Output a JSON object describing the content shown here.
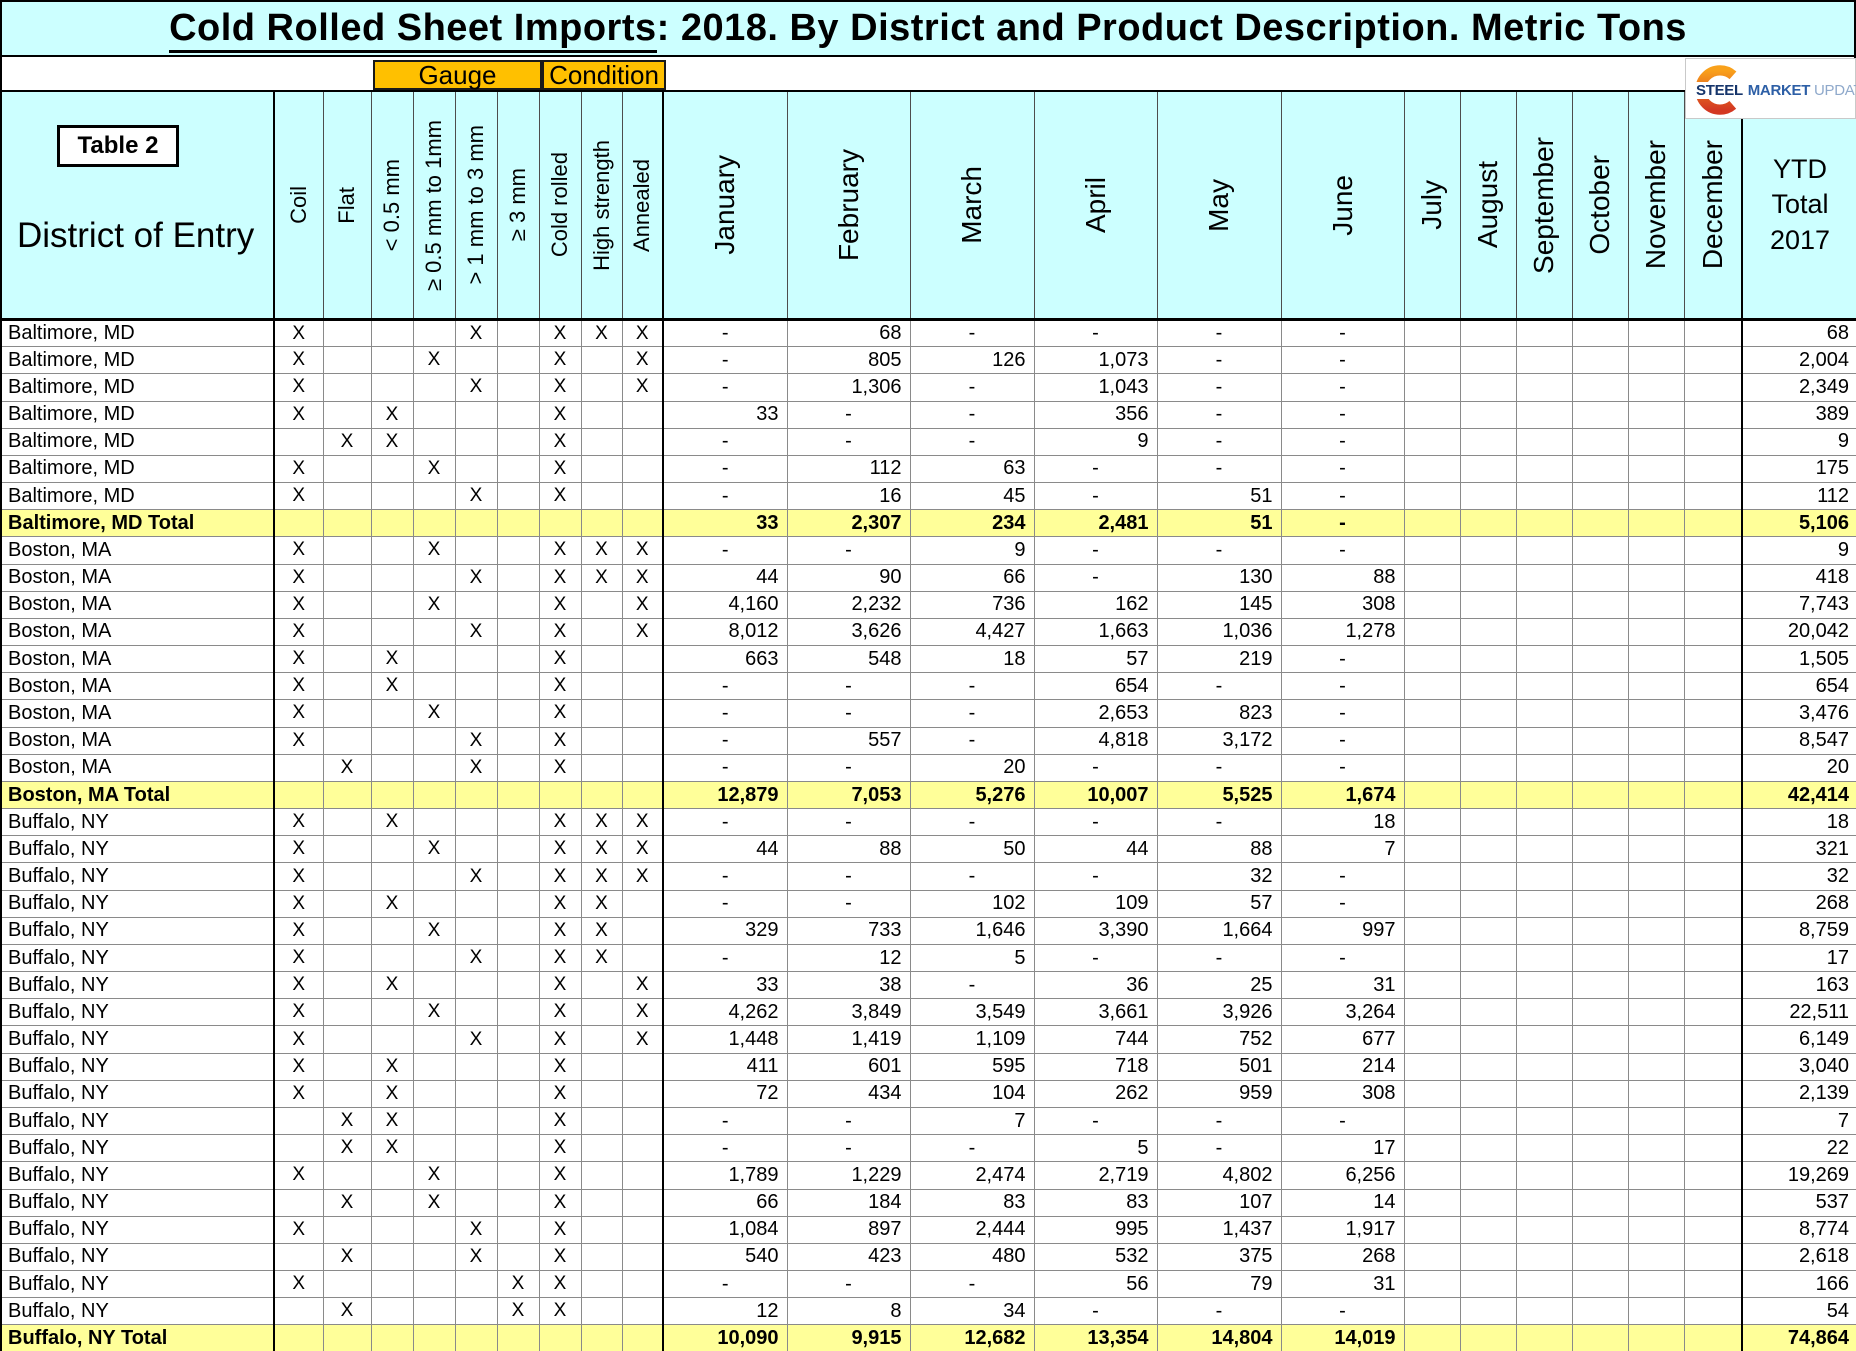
{
  "title": {
    "main": "Cold Rolled Sheet Imports",
    "rest": ": 2018. By District and Product Description. Metric Tons"
  },
  "bands": {
    "gauge": "Gauge",
    "condition": "Condition"
  },
  "logo": {
    "steel": "STEEL",
    "market": "MARKET",
    "update": "UPDATE"
  },
  "table_label": "Table 2",
  "district_header": "District of Entry",
  "columns": {
    "attrs": [
      "Coil",
      "Flat",
      "< 0.5 mm",
      "≥ 0.5 mm to 1mm",
      "> 1 mm to 3 mm",
      "≥ 3 mm",
      "Cold rolled",
      "High strength",
      "Annealed"
    ],
    "months": [
      "January",
      "February",
      "March",
      "April",
      "May",
      "June",
      "July",
      "August",
      "September",
      "October",
      "November",
      "December"
    ],
    "ytd_lines": [
      "YTD",
      "Total",
      "2017"
    ]
  },
  "colors": {
    "header_cyan": "#CCFFFF",
    "total_yellow": "#FFFF99",
    "band_amber": "#FFC000",
    "grid_gray": "#8A8A8A",
    "logo_orange_top": "#F9A11B",
    "logo_orange_bottom": "#D33822",
    "logo_navy": "#16356B",
    "logo_blue": "#2D5FA6",
    "logo_light_blue": "#8FA9CB"
  },
  "rows": [
    {
      "label": "Baltimore, MD",
      "total": false,
      "marks": [
        "X",
        "",
        "",
        "",
        "X",
        "",
        "X",
        "X",
        "X"
      ],
      "values": [
        "-",
        "68",
        "-",
        "-",
        "-",
        "-"
      ],
      "ytd": "68"
    },
    {
      "label": "Baltimore, MD",
      "total": false,
      "marks": [
        "X",
        "",
        "",
        "X",
        "",
        "",
        "X",
        "",
        "X"
      ],
      "values": [
        "-",
        "805",
        "126",
        "1,073",
        "-",
        "-"
      ],
      "ytd": "2,004"
    },
    {
      "label": "Baltimore, MD",
      "total": false,
      "marks": [
        "X",
        "",
        "",
        "",
        "X",
        "",
        "X",
        "",
        "X"
      ],
      "values": [
        "-",
        "1,306",
        "-",
        "1,043",
        "-",
        "-"
      ],
      "ytd": "2,349"
    },
    {
      "label": "Baltimore, MD",
      "total": false,
      "marks": [
        "X",
        "",
        "X",
        "",
        "",
        "",
        "X",
        "",
        ""
      ],
      "values": [
        "33",
        "-",
        "-",
        "356",
        "-",
        "-"
      ],
      "ytd": "389"
    },
    {
      "label": "Baltimore, MD",
      "total": false,
      "marks": [
        "",
        "X",
        "X",
        "",
        "",
        "",
        "X",
        "",
        ""
      ],
      "values": [
        "-",
        "-",
        "-",
        "9",
        "-",
        "-"
      ],
      "ytd": "9"
    },
    {
      "label": "Baltimore, MD",
      "total": false,
      "marks": [
        "X",
        "",
        "",
        "X",
        "",
        "",
        "X",
        "",
        ""
      ],
      "values": [
        "-",
        "112",
        "63",
        "-",
        "-",
        "-"
      ],
      "ytd": "175"
    },
    {
      "label": "Baltimore, MD",
      "total": false,
      "marks": [
        "X",
        "",
        "",
        "",
        "X",
        "",
        "X",
        "",
        ""
      ],
      "values": [
        "-",
        "16",
        "45",
        "-",
        "51",
        "-"
      ],
      "ytd": "112"
    },
    {
      "label": "Baltimore, MD Total",
      "total": true,
      "marks": [
        "",
        "",
        "",
        "",
        "",
        "",
        "",
        "",
        ""
      ],
      "values": [
        "33",
        "2,307",
        "234",
        "2,481",
        "51",
        "-"
      ],
      "ytd": "5,106"
    },
    {
      "label": "Boston, MA",
      "total": false,
      "marks": [
        "X",
        "",
        "",
        "X",
        "",
        "",
        "X",
        "X",
        "X"
      ],
      "values": [
        "-",
        "-",
        "9",
        "-",
        "-",
        "-"
      ],
      "ytd": "9"
    },
    {
      "label": "Boston, MA",
      "total": false,
      "marks": [
        "X",
        "",
        "",
        "",
        "X",
        "",
        "X",
        "X",
        "X"
      ],
      "values": [
        "44",
        "90",
        "66",
        "-",
        "130",
        "88"
      ],
      "ytd": "418"
    },
    {
      "label": "Boston, MA",
      "total": false,
      "marks": [
        "X",
        "",
        "",
        "X",
        "",
        "",
        "X",
        "",
        "X"
      ],
      "values": [
        "4,160",
        "2,232",
        "736",
        "162",
        "145",
        "308"
      ],
      "ytd": "7,743"
    },
    {
      "label": "Boston, MA",
      "total": false,
      "marks": [
        "X",
        "",
        "",
        "",
        "X",
        "",
        "X",
        "",
        "X"
      ],
      "values": [
        "8,012",
        "3,626",
        "4,427",
        "1,663",
        "1,036",
        "1,278"
      ],
      "ytd": "20,042"
    },
    {
      "label": "Boston, MA",
      "total": false,
      "marks": [
        "X",
        "",
        "X",
        "",
        "",
        "",
        "X",
        "",
        ""
      ],
      "values": [
        "663",
        "548",
        "18",
        "57",
        "219",
        "-"
      ],
      "ytd": "1,505"
    },
    {
      "label": "Boston, MA",
      "total": false,
      "marks": [
        "X",
        "",
        "X",
        "",
        "",
        "",
        "X",
        "",
        ""
      ],
      "values": [
        "-",
        "-",
        "-",
        "654",
        "-",
        "-"
      ],
      "ytd": "654"
    },
    {
      "label": "Boston, MA",
      "total": false,
      "marks": [
        "X",
        "",
        "",
        "X",
        "",
        "",
        "X",
        "",
        ""
      ],
      "values": [
        "-",
        "-",
        "-",
        "2,653",
        "823",
        "-"
      ],
      "ytd": "3,476"
    },
    {
      "label": "Boston, MA",
      "total": false,
      "marks": [
        "X",
        "",
        "",
        "",
        "X",
        "",
        "X",
        "",
        ""
      ],
      "values": [
        "-",
        "557",
        "-",
        "4,818",
        "3,172",
        "-"
      ],
      "ytd": "8,547"
    },
    {
      "label": "Boston, MA",
      "total": false,
      "marks": [
        "",
        "X",
        "",
        "",
        "X",
        "",
        "X",
        "",
        ""
      ],
      "values": [
        "-",
        "-",
        "20",
        "-",
        "-",
        "-"
      ],
      "ytd": "20"
    },
    {
      "label": "Boston, MA Total",
      "total": true,
      "marks": [
        "",
        "",
        "",
        "",
        "",
        "",
        "",
        "",
        ""
      ],
      "values": [
        "12,879",
        "7,053",
        "5,276",
        "10,007",
        "5,525",
        "1,674"
      ],
      "ytd": "42,414"
    },
    {
      "label": "Buffalo, NY",
      "total": false,
      "marks": [
        "X",
        "",
        "X",
        "",
        "",
        "",
        "X",
        "X",
        "X"
      ],
      "values": [
        "-",
        "-",
        "-",
        "-",
        "-",
        "18"
      ],
      "ytd": "18"
    },
    {
      "label": "Buffalo, NY",
      "total": false,
      "marks": [
        "X",
        "",
        "",
        "X",
        "",
        "",
        "X",
        "X",
        "X"
      ],
      "values": [
        "44",
        "88",
        "50",
        "44",
        "88",
        "7"
      ],
      "ytd": "321"
    },
    {
      "label": "Buffalo, NY",
      "total": false,
      "marks": [
        "X",
        "",
        "",
        "",
        "X",
        "",
        "X",
        "X",
        "X"
      ],
      "values": [
        "-",
        "-",
        "-",
        "-",
        "32",
        "-"
      ],
      "ytd": "32"
    },
    {
      "label": "Buffalo, NY",
      "total": false,
      "marks": [
        "X",
        "",
        "X",
        "",
        "",
        "",
        "X",
        "X",
        ""
      ],
      "values": [
        "-",
        "-",
        "102",
        "109",
        "57",
        "-"
      ],
      "ytd": "268"
    },
    {
      "label": "Buffalo, NY",
      "total": false,
      "marks": [
        "X",
        "",
        "",
        "X",
        "",
        "",
        "X",
        "X",
        ""
      ],
      "values": [
        "329",
        "733",
        "1,646",
        "3,390",
        "1,664",
        "997"
      ],
      "ytd": "8,759"
    },
    {
      "label": "Buffalo, NY",
      "total": false,
      "marks": [
        "X",
        "",
        "",
        "",
        "X",
        "",
        "X",
        "X",
        ""
      ],
      "values": [
        "-",
        "12",
        "5",
        "-",
        "-",
        "-"
      ],
      "ytd": "17"
    },
    {
      "label": "Buffalo, NY",
      "total": false,
      "marks": [
        "X",
        "",
        "X",
        "",
        "",
        "",
        "X",
        "",
        "X"
      ],
      "values": [
        "33",
        "38",
        "-",
        "36",
        "25",
        "31"
      ],
      "ytd": "163"
    },
    {
      "label": "Buffalo, NY",
      "total": false,
      "marks": [
        "X",
        "",
        "",
        "X",
        "",
        "",
        "X",
        "",
        "X"
      ],
      "values": [
        "4,262",
        "3,849",
        "3,549",
        "3,661",
        "3,926",
        "3,264"
      ],
      "ytd": "22,511"
    },
    {
      "label": "Buffalo, NY",
      "total": false,
      "marks": [
        "X",
        "",
        "",
        "",
        "X",
        "",
        "X",
        "",
        "X"
      ],
      "values": [
        "1,448",
        "1,419",
        "1,109",
        "744",
        "752",
        "677"
      ],
      "ytd": "6,149"
    },
    {
      "label": "Buffalo, NY",
      "total": false,
      "marks": [
        "X",
        "",
        "X",
        "",
        "",
        "",
        "X",
        "",
        ""
      ],
      "values": [
        "411",
        "601",
        "595",
        "718",
        "501",
        "214"
      ],
      "ytd": "3,040"
    },
    {
      "label": "Buffalo, NY",
      "total": false,
      "marks": [
        "X",
        "",
        "X",
        "",
        "",
        "",
        "X",
        "",
        ""
      ],
      "values": [
        "72",
        "434",
        "104",
        "262",
        "959",
        "308"
      ],
      "ytd": "2,139"
    },
    {
      "label": "Buffalo, NY",
      "total": false,
      "marks": [
        "",
        "X",
        "X",
        "",
        "",
        "",
        "X",
        "",
        ""
      ],
      "values": [
        "-",
        "-",
        "7",
        "-",
        "-",
        "-"
      ],
      "ytd": "7"
    },
    {
      "label": "Buffalo, NY",
      "total": false,
      "marks": [
        "",
        "X",
        "X",
        "",
        "",
        "",
        "X",
        "",
        ""
      ],
      "values": [
        "-",
        "-",
        "-",
        "5",
        "-",
        "17"
      ],
      "ytd": "22"
    },
    {
      "label": "Buffalo, NY",
      "total": false,
      "marks": [
        "X",
        "",
        "",
        "X",
        "",
        "",
        "X",
        "",
        ""
      ],
      "values": [
        "1,789",
        "1,229",
        "2,474",
        "2,719",
        "4,802",
        "6,256"
      ],
      "ytd": "19,269"
    },
    {
      "label": "Buffalo, NY",
      "total": false,
      "marks": [
        "",
        "X",
        "",
        "X",
        "",
        "",
        "X",
        "",
        ""
      ],
      "values": [
        "66",
        "184",
        "83",
        "83",
        "107",
        "14"
      ],
      "ytd": "537"
    },
    {
      "label": "Buffalo, NY",
      "total": false,
      "marks": [
        "X",
        "",
        "",
        "",
        "X",
        "",
        "X",
        "",
        ""
      ],
      "values": [
        "1,084",
        "897",
        "2,444",
        "995",
        "1,437",
        "1,917"
      ],
      "ytd": "8,774"
    },
    {
      "label": "Buffalo, NY",
      "total": false,
      "marks": [
        "",
        "X",
        "",
        "",
        "X",
        "",
        "X",
        "",
        ""
      ],
      "values": [
        "540",
        "423",
        "480",
        "532",
        "375",
        "268"
      ],
      "ytd": "2,618"
    },
    {
      "label": "Buffalo, NY",
      "total": false,
      "marks": [
        "X",
        "",
        "",
        "",
        "",
        "X",
        "X",
        "",
        ""
      ],
      "values": [
        "-",
        "-",
        "-",
        "56",
        "79",
        "31"
      ],
      "ytd": "166"
    },
    {
      "label": "Buffalo, NY",
      "total": false,
      "marks": [
        "",
        "X",
        "",
        "",
        "",
        "X",
        "X",
        "",
        ""
      ],
      "values": [
        "12",
        "8",
        "34",
        "-",
        "-",
        "-"
      ],
      "ytd": "54"
    },
    {
      "label": "Buffalo, NY Total",
      "total": true,
      "marks": [
        "",
        "",
        "",
        "",
        "",
        "",
        "",
        "",
        ""
      ],
      "values": [
        "10,090",
        "9,915",
        "12,682",
        "13,354",
        "14,804",
        "14,019"
      ],
      "ytd": "74,864"
    }
  ]
}
